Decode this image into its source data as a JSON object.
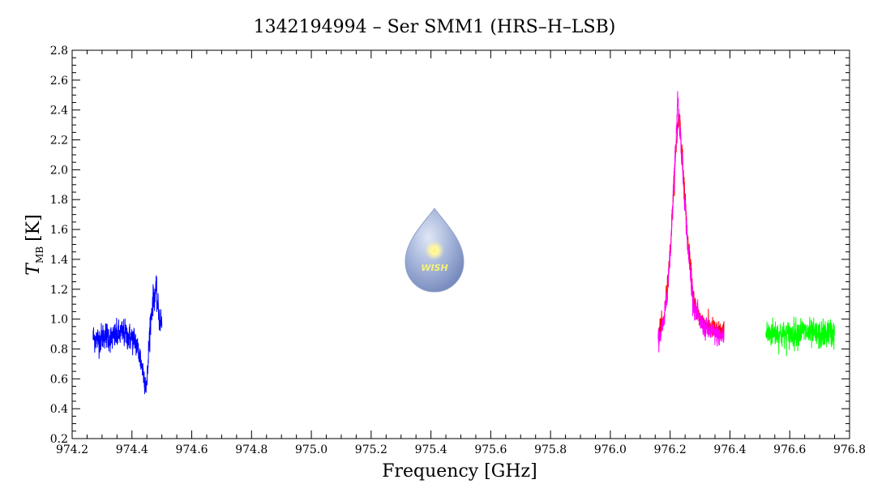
{
  "chart_data": {
    "type": "line",
    "title": "1342194994 – Ser SMM1 (HRS–H–LSB)",
    "xlabel": "Frequency [GHz]",
    "ylabel_main": "T",
    "ylabel_sub": "MB",
    "ylabel_unit": "[K]",
    "xlim": [
      974.2,
      976.8
    ],
    "ylim": [
      0.2,
      2.8
    ],
    "x_ticks": [
      "974.2",
      "974.4",
      "974.6",
      "974.8",
      "975.0",
      "975.2",
      "975.4",
      "975.6",
      "975.8",
      "976.0",
      "976.2",
      "976.4",
      "976.6",
      "976.8"
    ],
    "y_ticks": [
      "0.2",
      "0.4",
      "0.6",
      "0.8",
      "1.0",
      "1.2",
      "1.4",
      "1.6",
      "1.8",
      "2.0",
      "2.2",
      "2.4",
      "2.6",
      "2.8"
    ],
    "grid": false,
    "series": [
      {
        "color": "#0000ff",
        "x": [
          974.27,
          974.29,
          974.31,
          974.33,
          974.35,
          974.37,
          974.39,
          974.41,
          974.42,
          974.43,
          974.44,
          974.45,
          974.455,
          974.46,
          974.47,
          974.48,
          974.49,
          974.5
        ],
        "y": [
          0.88,
          0.86,
          0.9,
          0.87,
          0.89,
          0.91,
          0.88,
          0.86,
          0.8,
          0.72,
          0.62,
          0.55,
          0.75,
          0.95,
          1.12,
          1.2,
          1.02,
          0.96
        ],
        "noise": 0.08
      },
      {
        "color": "#ff0000",
        "x": [
          976.16,
          976.18,
          976.2,
          976.22,
          976.23,
          976.24,
          976.26,
          976.28,
          976.3,
          976.32,
          976.34,
          976.36,
          976.38
        ],
        "y": [
          0.9,
          1.0,
          1.45,
          2.15,
          2.4,
          2.1,
          1.5,
          1.1,
          1.0,
          0.96,
          0.94,
          0.92,
          0.91
        ],
        "noise": 0.06
      },
      {
        "color": "#ff00ff",
        "x": [
          976.16,
          976.18,
          976.2,
          976.21,
          976.22,
          976.225,
          976.23,
          976.24,
          976.25,
          976.26,
          976.28,
          976.3,
          976.32,
          976.34,
          976.36,
          976.38
        ],
        "y": [
          0.86,
          0.98,
          1.4,
          1.85,
          2.2,
          2.5,
          2.35,
          2.05,
          1.75,
          1.45,
          1.08,
          0.98,
          0.93,
          0.91,
          0.89,
          0.88
        ],
        "noise": 0.06
      },
      {
        "color": "#00ff00",
        "x": [
          976.52,
          976.55,
          976.58,
          976.61,
          976.64,
          976.67,
          976.7,
          976.73,
          976.75
        ],
        "y": [
          0.9,
          0.91,
          0.89,
          0.9,
          0.92,
          0.9,
          0.89,
          0.91,
          0.9
        ],
        "noise": 0.08
      }
    ]
  },
  "logo": {
    "text": "WISH",
    "color": "#a9b6d9"
  }
}
